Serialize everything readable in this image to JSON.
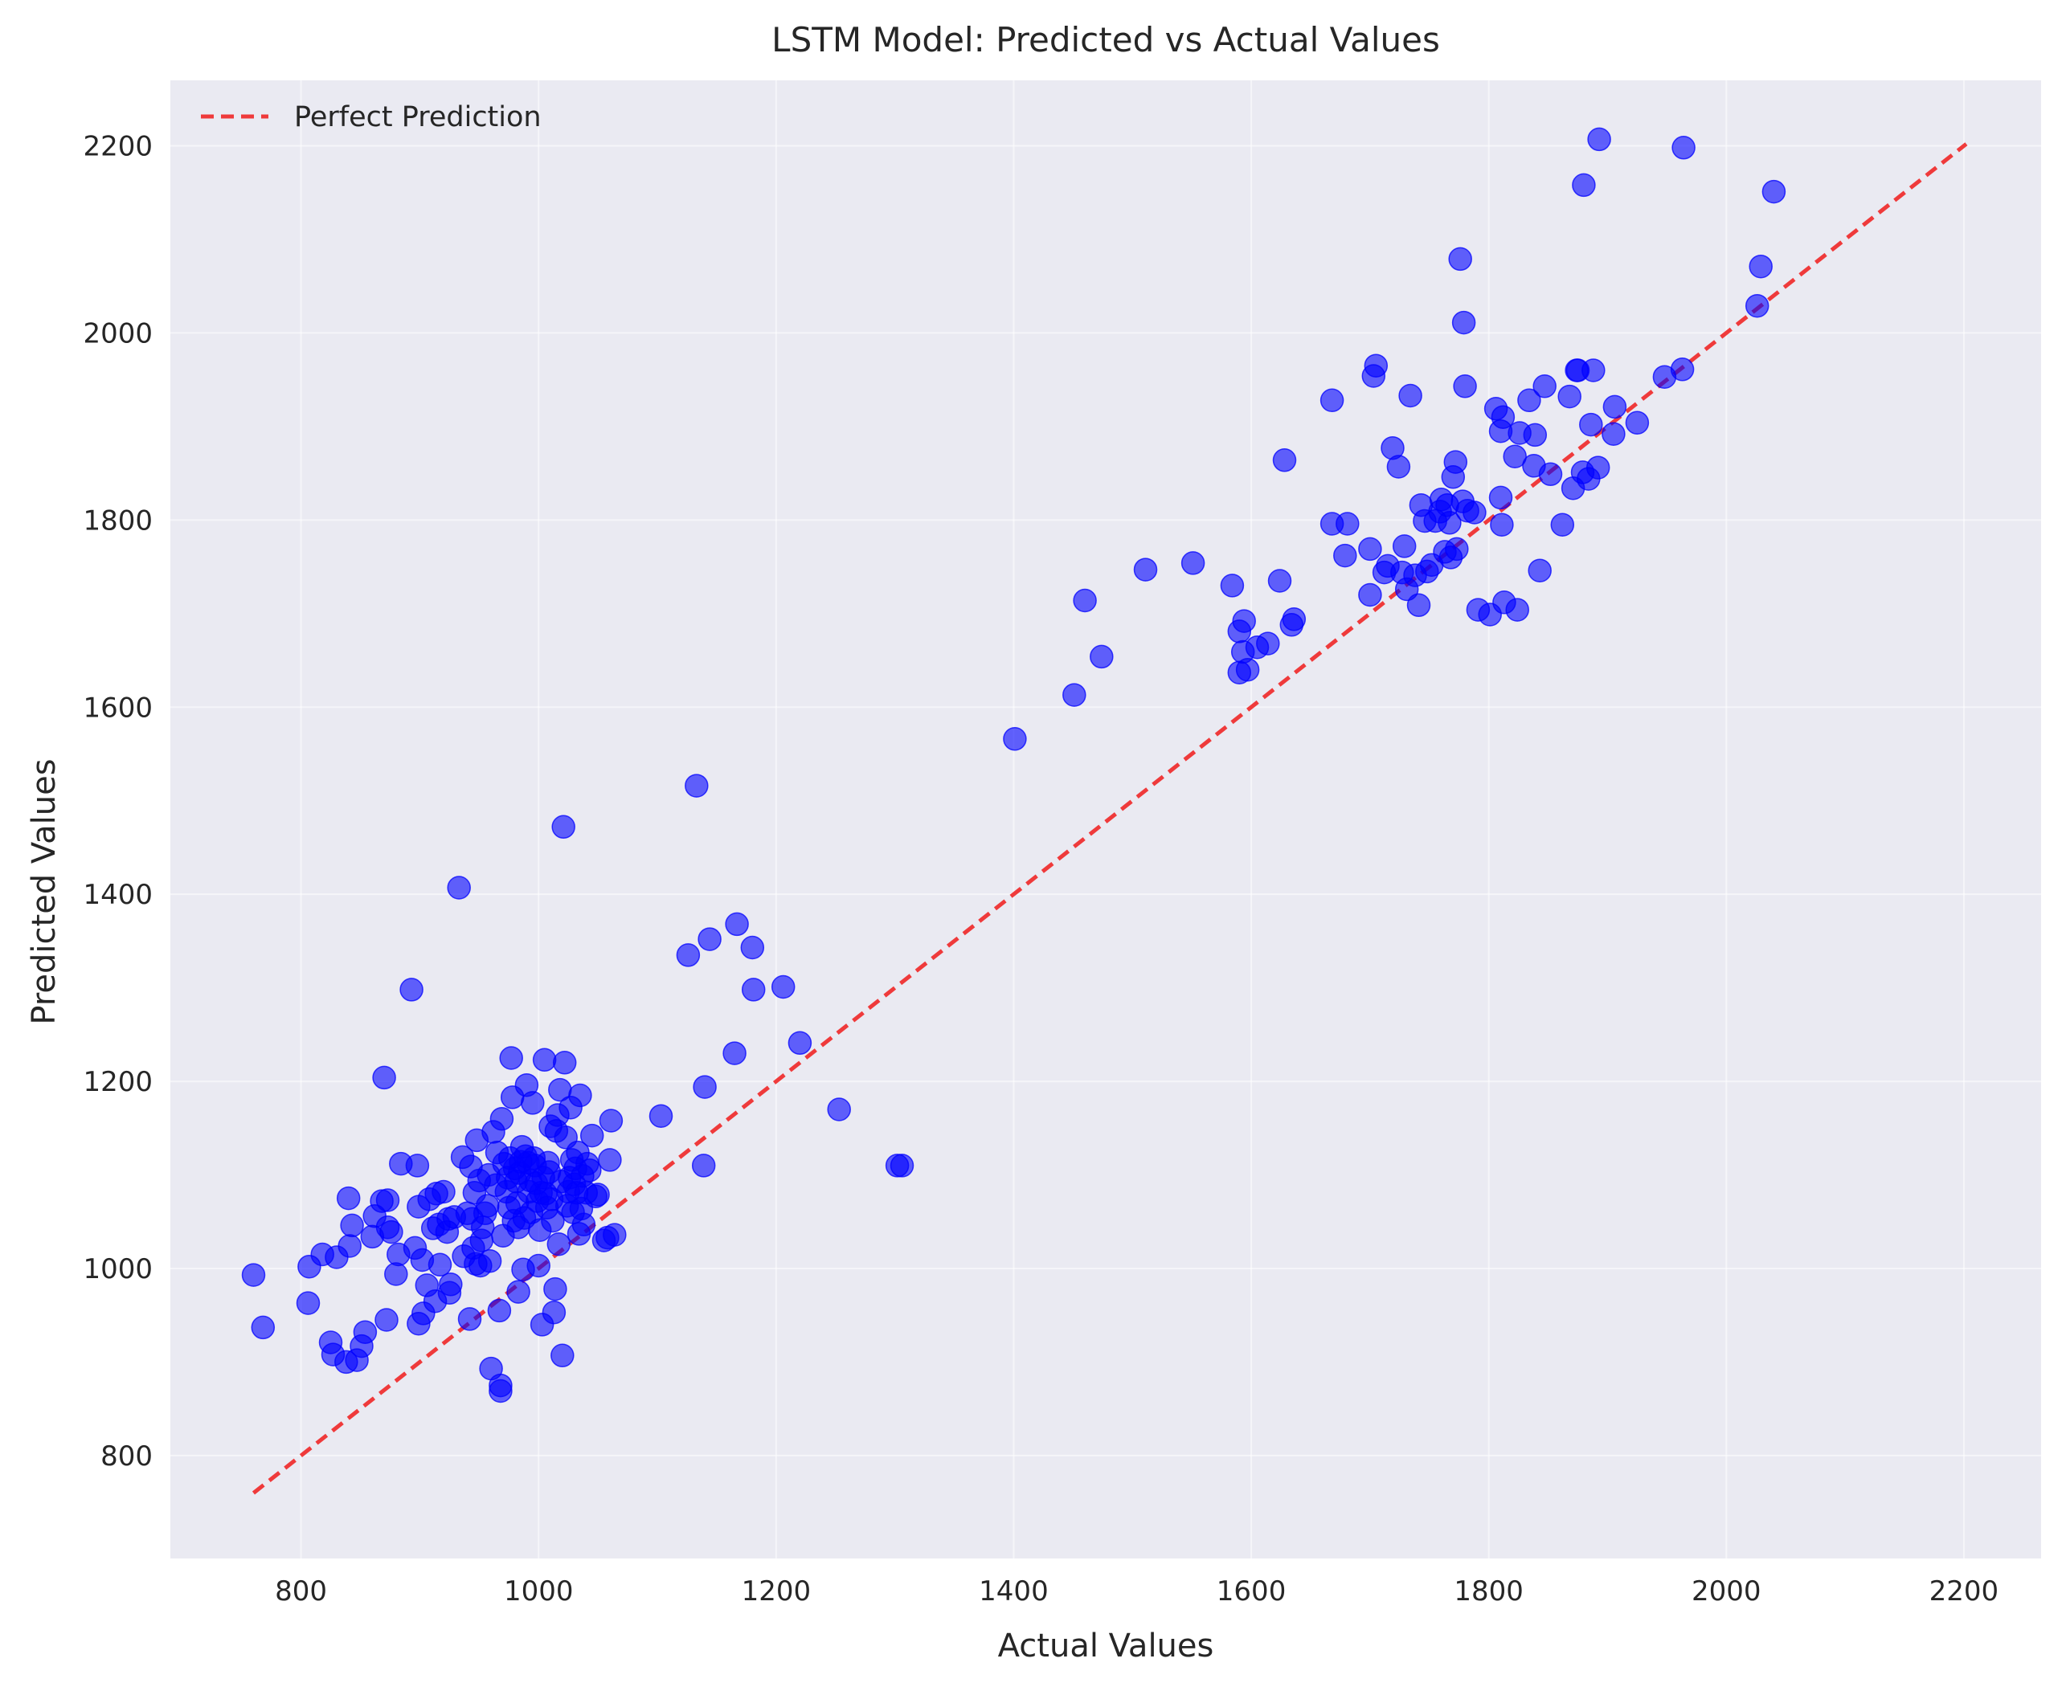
{
  "chart_data": {
    "type": "scatter",
    "title": "LSTM Model: Predicted vs Actual Values",
    "xlabel": "Actual Values",
    "ylabel": "Predicted Values",
    "xlim": [
      690,
      2265
    ],
    "ylim": [
      690,
      2270
    ],
    "xticks": [
      800,
      1000,
      1200,
      1400,
      1600,
      1800,
      2000,
      2200
    ],
    "yticks": [
      800,
      1000,
      1200,
      1400,
      1600,
      1800,
      2000,
      2200
    ],
    "grid": true,
    "legend_position": "top-left",
    "colors": {
      "points": "#0000ff",
      "reference_line": "#f02828",
      "background": "#eaeaf2",
      "grid": "#ffffff"
    },
    "reference_line": {
      "name": "Perfect Prediction",
      "x": [
        760,
        2202
      ],
      "y": [
        760,
        2202
      ],
      "style": "dashed"
    },
    "series": [
      {
        "points": [
          [
            760,
            993
          ],
          [
            768,
            937
          ],
          [
            806,
            963
          ],
          [
            807,
            1002
          ],
          [
            818,
            1015
          ],
          [
            825,
            921
          ],
          [
            827,
            908
          ],
          [
            830,
            1012
          ],
          [
            838,
            900
          ],
          [
            840,
            1075
          ],
          [
            841,
            1024
          ],
          [
            843,
            1046
          ],
          [
            847,
            902
          ],
          [
            851,
            917
          ],
          [
            854,
            932
          ],
          [
            860,
            1034
          ],
          [
            862,
            1056
          ],
          [
            868,
            1072
          ],
          [
            870,
            1204
          ],
          [
            872,
            945
          ],
          [
            873,
            1073
          ],
          [
            873,
            1044
          ],
          [
            876,
            1039
          ],
          [
            880,
            994
          ],
          [
            882,
            1015
          ],
          [
            884,
            1112
          ],
          [
            893,
            1298
          ],
          [
            896,
            1022
          ],
          [
            898,
            1110
          ],
          [
            899,
            1066
          ],
          [
            899,
            941
          ],
          [
            902,
            1009
          ],
          [
            903,
            952
          ],
          [
            906,
            982
          ],
          [
            908,
            1074
          ],
          [
            911,
            1043
          ],
          [
            913,
            965
          ],
          [
            914,
            1080
          ],
          [
            916,
            1047
          ],
          [
            917,
            1004
          ],
          [
            920,
            1082
          ],
          [
            923,
            1039
          ],
          [
            924,
            1053
          ],
          [
            925,
            974
          ],
          [
            926,
            983
          ],
          [
            929,
            1055
          ],
          [
            933,
            1407
          ],
          [
            936,
            1119
          ],
          [
            937,
            1013
          ],
          [
            940,
            1059
          ],
          [
            942,
            946
          ],
          [
            943,
            1109
          ],
          [
            944,
            1053
          ],
          [
            945,
            1022
          ],
          [
            946,
            1081
          ],
          [
            947,
            1005
          ],
          [
            948,
            1137
          ],
          [
            950,
            1094
          ],
          [
            951,
            1003
          ],
          [
            952,
            1030
          ],
          [
            953,
            1044
          ],
          [
            955,
            1059
          ],
          [
            957,
            1067
          ],
          [
            958,
            1100
          ],
          [
            959,
            1008
          ],
          [
            960,
            893
          ],
          [
            962,
            1146
          ],
          [
            964,
            1089
          ],
          [
            965,
            1124
          ],
          [
            967,
            955
          ],
          [
            968,
            875
          ],
          [
            968,
            869
          ],
          [
            969,
            1160
          ],
          [
            970,
            1035
          ],
          [
            971,
            1112
          ],
          [
            973,
            1082
          ],
          [
            974,
            1097
          ],
          [
            975,
            1065
          ],
          [
            976,
            1118
          ],
          [
            977,
            1225
          ],
          [
            978,
            1183
          ],
          [
            979,
            1051
          ],
          [
            980,
            1107
          ],
          [
            981,
            1093
          ],
          [
            982,
            1070
          ],
          [
            983,
            1044
          ],
          [
            983,
            975
          ],
          [
            984,
            1102
          ],
          [
            985,
            1114
          ],
          [
            986,
            1130
          ],
          [
            987,
            999
          ],
          [
            988,
            1054
          ],
          [
            989,
            1120
          ],
          [
            990,
            1196
          ],
          [
            991,
            1113
          ],
          [
            992,
            1082
          ],
          [
            993,
            1094
          ],
          [
            994,
            1060
          ],
          [
            995,
            1177
          ],
          [
            996,
            1118
          ],
          [
            997,
            1110
          ],
          [
            998,
            1091
          ],
          [
            999,
            1072
          ],
          [
            1000,
            1003
          ],
          [
            1001,
            1041
          ],
          [
            1002,
            1081
          ],
          [
            1003,
            940
          ],
          [
            1004,
            1097
          ],
          [
            1005,
            1223
          ],
          [
            1006,
            1080
          ],
          [
            1007,
            1065
          ],
          [
            1008,
            1113
          ],
          [
            1009,
            1103
          ],
          [
            1010,
            1152
          ],
          [
            1011,
            1074
          ],
          [
            1012,
            1051
          ],
          [
            1013,
            953
          ],
          [
            1014,
            978
          ],
          [
            1015,
            1147
          ],
          [
            1016,
            1164
          ],
          [
            1017,
            1026
          ],
          [
            1018,
            1191
          ],
          [
            1019,
            1093
          ],
          [
            1020,
            907
          ],
          [
            1021,
            1472
          ],
          [
            1022,
            1220
          ],
          [
            1023,
            1140
          ],
          [
            1024,
            1067
          ],
          [
            1025,
            1082
          ],
          [
            1026,
            1097
          ],
          [
            1027,
            1172
          ],
          [
            1028,
            1116
          ],
          [
            1029,
            1060
          ],
          [
            1030,
            1090
          ],
          [
            1031,
            1107
          ],
          [
            1032,
            1081
          ],
          [
            1033,
            1124
          ],
          [
            1034,
            1037
          ],
          [
            1035,
            1185
          ],
          [
            1036,
            1064
          ],
          [
            1037,
            1099
          ],
          [
            1038,
            1047
          ],
          [
            1040,
            1081
          ],
          [
            1041,
            1112
          ],
          [
            1043,
            1105
          ],
          [
            1045,
            1142
          ],
          [
            1048,
            1077
          ],
          [
            1050,
            1079
          ],
          [
            1055,
            1030
          ],
          [
            1058,
            1033
          ],
          [
            1060,
            1116
          ],
          [
            1061,
            1158
          ],
          [
            1064,
            1036
          ],
          [
            1103,
            1163
          ],
          [
            1126,
            1335
          ],
          [
            1133,
            1516
          ],
          [
            1139,
            1110
          ],
          [
            1140,
            1194
          ],
          [
            1144,
            1352
          ],
          [
            1165,
            1230
          ],
          [
            1167,
            1368
          ],
          [
            1180,
            1343
          ],
          [
            1181,
            1298
          ],
          [
            1206,
            1301
          ],
          [
            1220,
            1241
          ],
          [
            1253,
            1170
          ],
          [
            1302,
            1110
          ],
          [
            1306,
            1110
          ],
          [
            1401,
            1566
          ],
          [
            1451,
            1613
          ],
          [
            1460,
            1714
          ],
          [
            1474,
            1654
          ],
          [
            1511,
            1747
          ],
          [
            1551,
            1754
          ],
          [
            1584,
            1730
          ],
          [
            1590,
            1637
          ],
          [
            1590,
            1681
          ],
          [
            1593,
            1659
          ],
          [
            1594,
            1692
          ],
          [
            1597,
            1640
          ],
          [
            1605,
            1664
          ],
          [
            1614,
            1668
          ],
          [
            1624,
            1735
          ],
          [
            1628,
            1864
          ],
          [
            1634,
            1688
          ],
          [
            1636,
            1694
          ],
          [
            1668,
            1796
          ],
          [
            1668,
            1928
          ],
          [
            1679,
            1762
          ],
          [
            1681,
            1796
          ],
          [
            1700,
            1769
          ],
          [
            1700,
            1720
          ],
          [
            1703,
            1954
          ],
          [
            1705,
            1965
          ],
          [
            1712,
            1744
          ],
          [
            1715,
            1751
          ],
          [
            1719,
            1877
          ],
          [
            1724,
            1857
          ],
          [
            1727,
            1744
          ],
          [
            1729,
            1772
          ],
          [
            1731,
            1726
          ],
          [
            1734,
            1933
          ],
          [
            1738,
            1741
          ],
          [
            1741,
            1709
          ],
          [
            1743,
            1816
          ],
          [
            1746,
            1799
          ],
          [
            1748,
            1745
          ],
          [
            1752,
            1752
          ],
          [
            1755,
            1799
          ],
          [
            1759,
            1809
          ],
          [
            1760,
            1822
          ],
          [
            1763,
            1766
          ],
          [
            1765,
            1816
          ],
          [
            1767,
            1797
          ],
          [
            1768,
            1760
          ],
          [
            1770,
            1846
          ],
          [
            1772,
            1862
          ],
          [
            1773,
            1769
          ],
          [
            1776,
            2079
          ],
          [
            1778,
            1820
          ],
          [
            1779,
            2011
          ],
          [
            1780,
            1943
          ],
          [
            1782,
            1810
          ],
          [
            1788,
            1808
          ],
          [
            1791,
            1704
          ],
          [
            1801,
            1699
          ],
          [
            1806,
            1919
          ],
          [
            1810,
            1895
          ],
          [
            1810,
            1824
          ],
          [
            1811,
            1795
          ],
          [
            1812,
            1910
          ],
          [
            1813,
            1712
          ],
          [
            1822,
            1868
          ],
          [
            1824,
            1704
          ],
          [
            1826,
            1893
          ],
          [
            1834,
            1928
          ],
          [
            1838,
            1858
          ],
          [
            1839,
            1891
          ],
          [
            1843,
            1746
          ],
          [
            1847,
            1943
          ],
          [
            1852,
            1849
          ],
          [
            1862,
            1795
          ],
          [
            1868,
            1932
          ],
          [
            1871,
            1834
          ],
          [
            1874,
            1960
          ],
          [
            1875,
            1960
          ],
          [
            1879,
            1851
          ],
          [
            1880,
            2158
          ],
          [
            1884,
            1844
          ],
          [
            1886,
            1902
          ],
          [
            1888,
            1960
          ],
          [
            1892,
            1856
          ],
          [
            1893,
            2207
          ],
          [
            1905,
            1892
          ],
          [
            1906,
            1921
          ],
          [
            1925,
            1904
          ],
          [
            1948,
            1953
          ],
          [
            1963,
            1961
          ],
          [
            1964,
            2198
          ],
          [
            2026,
            2029
          ],
          [
            2029,
            2071
          ],
          [
            2040,
            2151
          ]
        ]
      }
    ]
  }
}
